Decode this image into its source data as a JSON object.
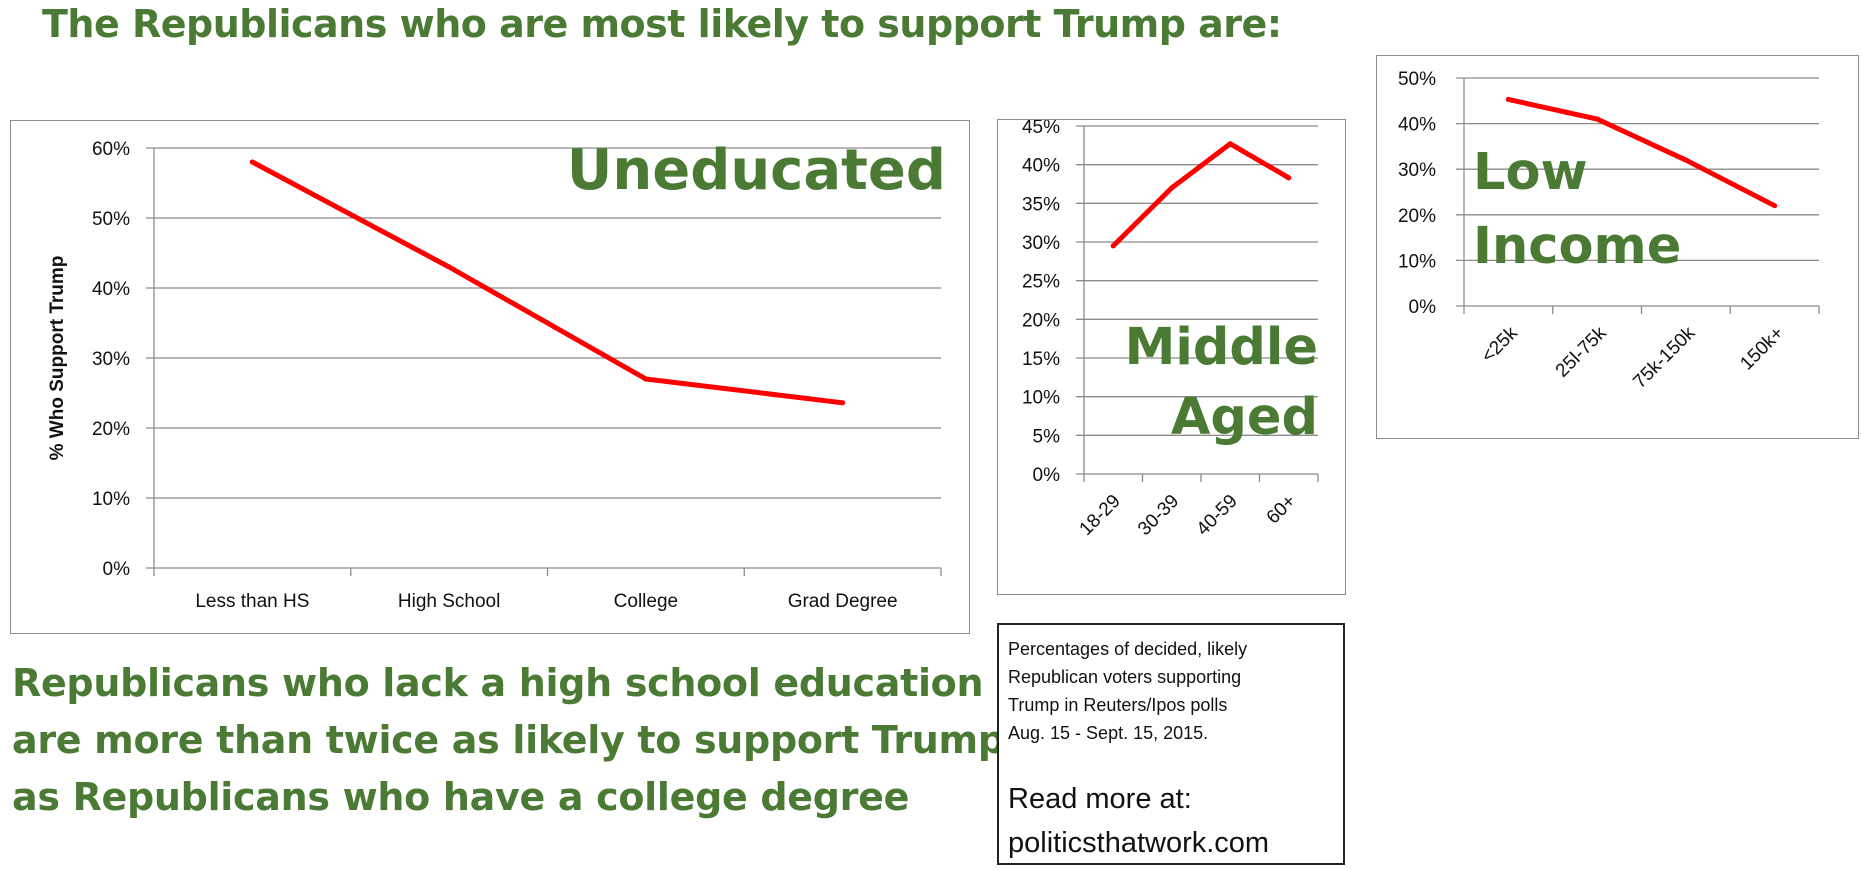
{
  "headline": "The Republicans who are most likely to support Trump are:",
  "colors": {
    "accent_green": "#4a7a34",
    "line_red": "#ff0000",
    "grid": "#8c8c8c"
  },
  "chart_data": [
    {
      "type": "line",
      "title": "Uneducated",
      "categories": [
        "Less than HS",
        "High School",
        "College",
        "Grad Degree"
      ],
      "values": [
        58,
        43,
        27,
        23.6
      ],
      "ylabel": "% Who Support Trump",
      "xlabel": "",
      "ylim": [
        0,
        60
      ],
      "yticks": [
        0,
        10,
        20,
        30,
        40,
        50,
        60
      ],
      "ytick_labels": [
        "0%",
        "10%",
        "20%",
        "30%",
        "40%",
        "50%",
        "60%"
      ],
      "series_color": "#ff0000",
      "grid": true
    },
    {
      "type": "line",
      "title_lines": [
        "Middle",
        "Aged"
      ],
      "categories": [
        "18-29",
        "30-39",
        "40-59",
        "60+"
      ],
      "values": [
        29.5,
        37,
        42.7,
        38.3
      ],
      "ylim": [
        0,
        45
      ],
      "yticks": [
        0,
        5,
        10,
        15,
        20,
        25,
        30,
        35,
        40,
        45
      ],
      "ytick_labels": [
        "0%",
        "5%",
        "10%",
        "15%",
        "20%",
        "25%",
        "30%",
        "35%",
        "40%",
        "45%"
      ],
      "series_color": "#ff0000",
      "grid": true
    },
    {
      "type": "line",
      "title_lines": [
        "Low",
        "Income"
      ],
      "categories": [
        "<25k",
        "25l-75k",
        "75k-150k",
        "150k+"
      ],
      "values": [
        45.3,
        41,
        32,
        22
      ],
      "ylim": [
        0,
        50
      ],
      "yticks": [
        0,
        10,
        20,
        30,
        40,
        50
      ],
      "ytick_labels": [
        "0%",
        "10%",
        "20%",
        "30%",
        "40%",
        "50%"
      ],
      "series_color": "#ff0000",
      "grid": true
    }
  ],
  "caption": [
    "Republicans who lack a high school education",
    "are more than twice as likely to support Trump",
    "as Republicans who have a college degree"
  ],
  "note": {
    "description": [
      "Percentages of decided, likely",
      "Republican voters supporting",
      "Trump in Reuters/Ipos polls",
      "Aug. 15 - Sept. 15, 2015."
    ],
    "read_more": [
      "Read more at:",
      "politicsthatwork.com"
    ]
  }
}
